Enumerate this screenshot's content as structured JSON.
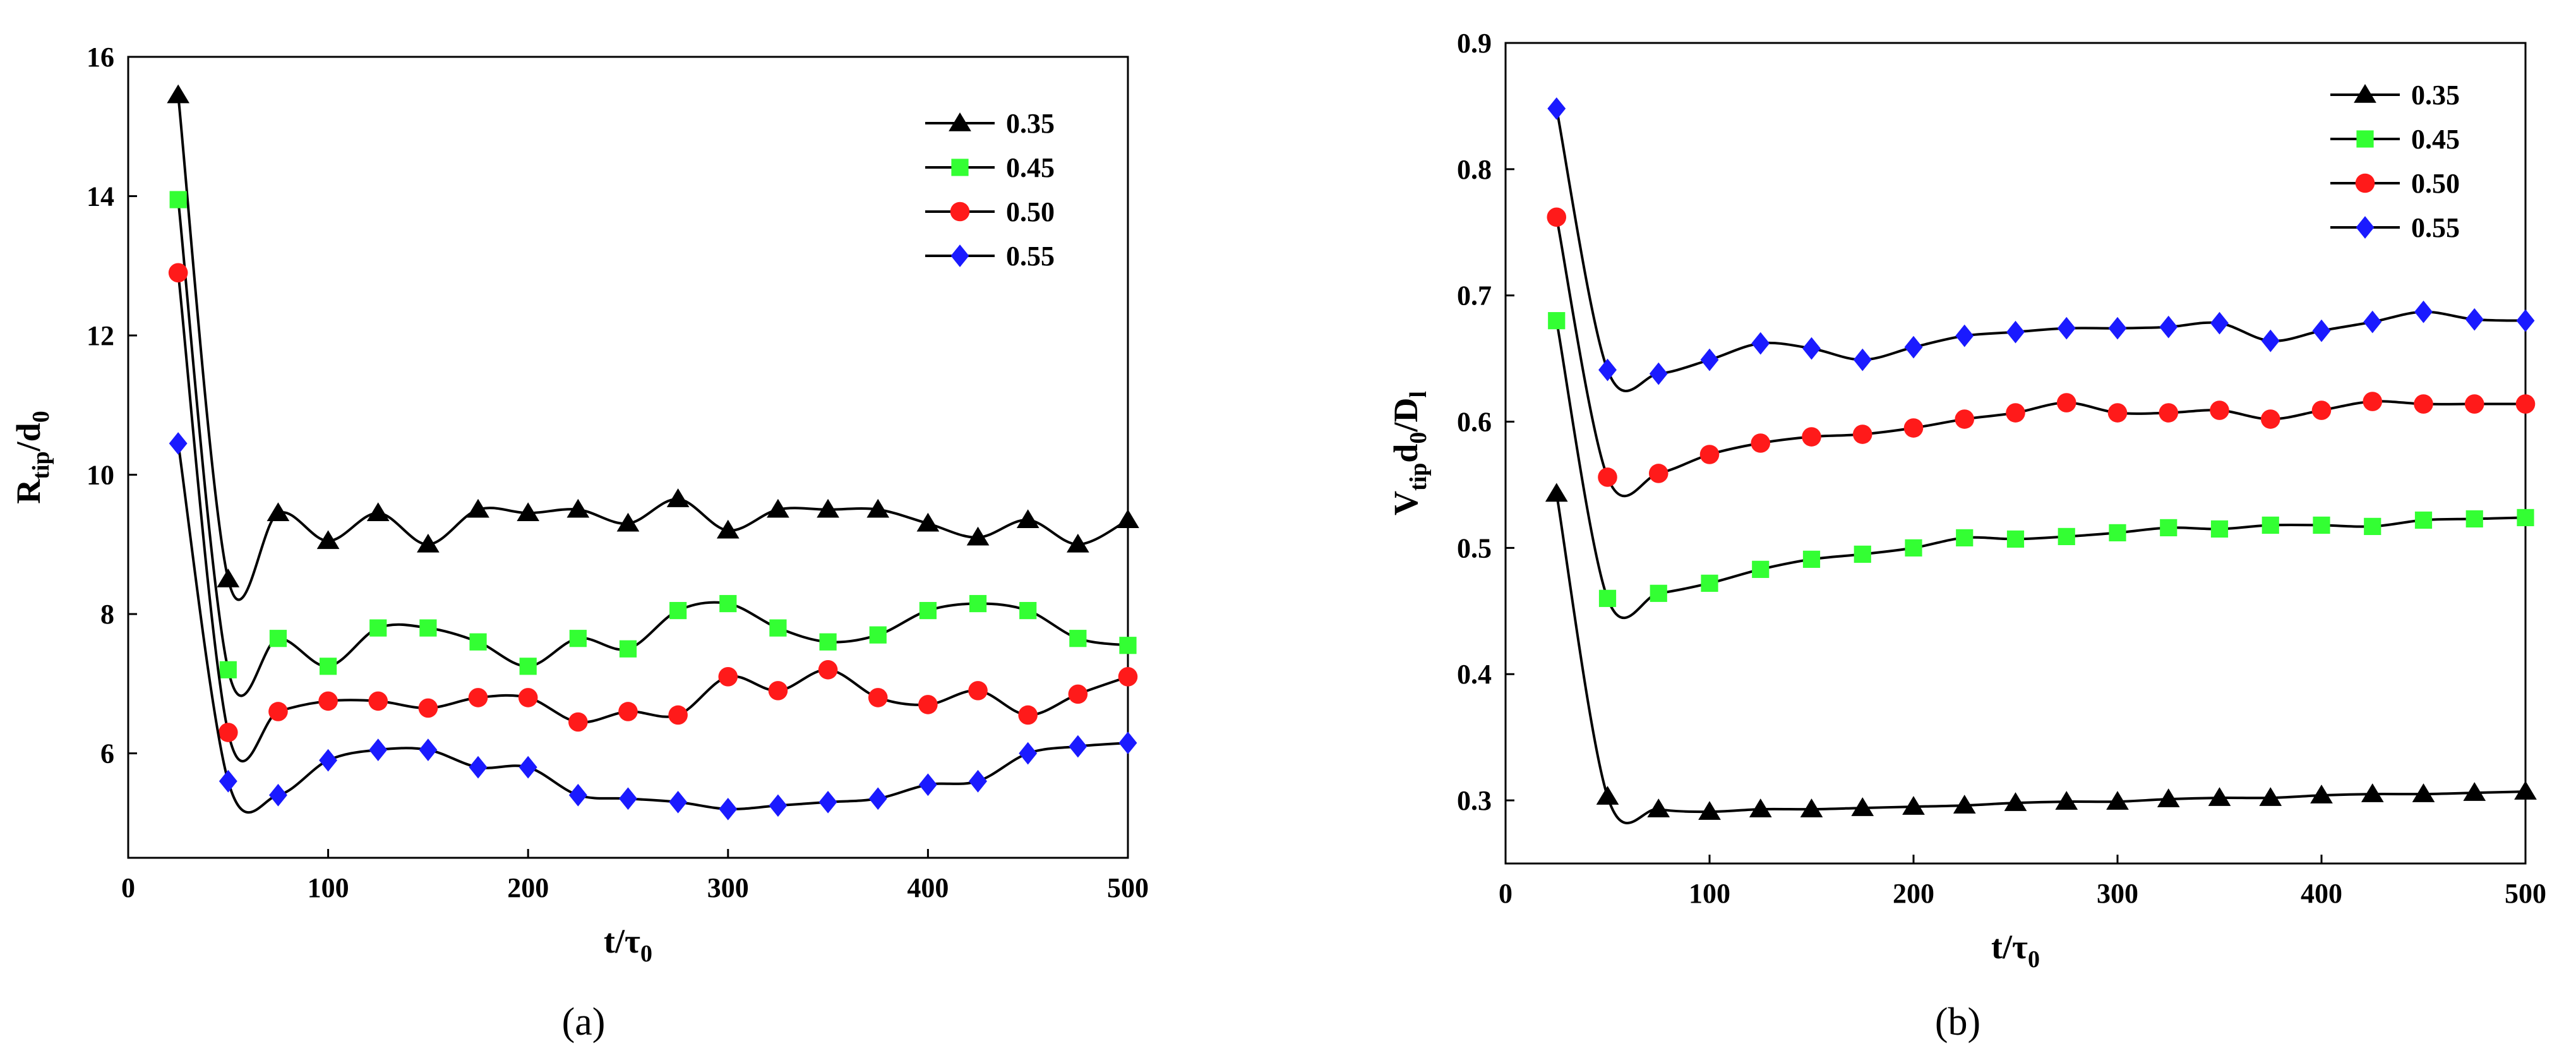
{
  "figure_labels": [
    "(a)",
    "(b)"
  ],
  "legend_markers": {
    "0.35": "triangle",
    "0.45": "square",
    "0.50": "circle",
    "0.55": "diamond"
  },
  "chart_data": [
    {
      "type": "line",
      "panel": "(a)",
      "xlabel": {
        "main": "t/τ",
        "sub": "0"
      },
      "ylabel": {
        "main": "R",
        "sub": "tip",
        "mid": "/d",
        "sub2": "0"
      },
      "xlim": [
        0,
        500
      ],
      "ylim": [
        4.5,
        16
      ],
      "xticks": [
        0,
        100,
        200,
        300,
        400,
        500
      ],
      "yticks": [
        6,
        8,
        10,
        12,
        14,
        16
      ],
      "grid": false,
      "legend_position": "top-right",
      "x": [
        25,
        50,
        75,
        100,
        125,
        150,
        175,
        200,
        225,
        250,
        275,
        300,
        325,
        350,
        375,
        400,
        425,
        450,
        475,
        500
      ],
      "series": [
        {
          "name": "0.35",
          "color": "#000000",
          "marker": "triangle",
          "values": [
            15.45,
            8.5,
            9.45,
            9.05,
            9.45,
            9.0,
            9.5,
            9.45,
            9.5,
            9.3,
            9.65,
            9.2,
            9.5,
            9.5,
            9.5,
            9.3,
            9.1,
            9.35,
            9.0,
            9.35
          ]
        },
        {
          "name": "0.45",
          "color": "#33ff33",
          "marker": "square",
          "values": [
            13.95,
            7.2,
            7.65,
            7.25,
            7.8,
            7.8,
            7.6,
            7.25,
            7.65,
            7.5,
            8.05,
            8.15,
            7.8,
            7.6,
            7.7,
            8.05,
            8.15,
            8.05,
            7.65,
            7.55
          ]
        },
        {
          "name": "0.50",
          "color": "#ff1a1a",
          "marker": "circle",
          "values": [
            12.9,
            6.3,
            6.6,
            6.75,
            6.75,
            6.65,
            6.8,
            6.8,
            6.45,
            6.6,
            6.55,
            7.1,
            6.9,
            7.2,
            6.8,
            6.7,
            6.9,
            6.55,
            6.85,
            7.1
          ]
        },
        {
          "name": "0.55",
          "color": "#1a1aff",
          "marker": "diamond",
          "values": [
            10.45,
            5.6,
            5.4,
            5.9,
            6.05,
            6.05,
            5.8,
            5.8,
            5.4,
            5.35,
            5.3,
            5.2,
            5.25,
            5.3,
            5.35,
            5.55,
            5.6,
            6.0,
            6.1,
            6.15
          ]
        }
      ]
    },
    {
      "type": "line",
      "panel": "(b)",
      "xlabel": {
        "main": "t/τ",
        "sub": "0"
      },
      "ylabel": {
        "main": "V",
        "sub": "tip",
        "mid": "d",
        "sub2": "0",
        "mid2": "/D",
        "sub3": "l"
      },
      "xlim": [
        0,
        500
      ],
      "ylim": [
        0.25,
        0.9
      ],
      "xticks": [
        0,
        100,
        200,
        300,
        400,
        500
      ],
      "yticks": [
        0.3,
        0.4,
        0.5,
        0.6,
        0.7,
        0.8,
        0.9
      ],
      "grid": false,
      "legend_position": "top-right",
      "x": [
        25,
        50,
        75,
        100,
        125,
        150,
        175,
        200,
        225,
        250,
        275,
        300,
        325,
        350,
        375,
        400,
        425,
        450,
        475,
        500
      ],
      "series": [
        {
          "name": "0.35",
          "color": "#000000",
          "marker": "triangle",
          "values": [
            0.543,
            0.303,
            0.293,
            0.291,
            0.293,
            0.293,
            0.294,
            0.295,
            0.296,
            0.298,
            0.299,
            0.299,
            0.301,
            0.302,
            0.302,
            0.304,
            0.305,
            0.305,
            0.306,
            0.307
          ]
        },
        {
          "name": "0.45",
          "color": "#33ff33",
          "marker": "square",
          "values": [
            0.68,
            0.46,
            0.464,
            0.472,
            0.483,
            0.491,
            0.495,
            0.5,
            0.508,
            0.507,
            0.509,
            0.512,
            0.516,
            0.515,
            0.518,
            0.518,
            0.517,
            0.522,
            0.523,
            0.524
          ]
        },
        {
          "name": "0.50",
          "color": "#ff1a1a",
          "marker": "circle",
          "values": [
            0.762,
            0.556,
            0.559,
            0.574,
            0.583,
            0.588,
            0.59,
            0.595,
            0.602,
            0.607,
            0.615,
            0.607,
            0.607,
            0.609,
            0.602,
            0.609,
            0.616,
            0.614,
            0.614,
            0.614
          ]
        },
        {
          "name": "0.55",
          "color": "#1a1aff",
          "marker": "diamond",
          "values": [
            0.848,
            0.641,
            0.638,
            0.649,
            0.662,
            0.658,
            0.649,
            0.659,
            0.668,
            0.671,
            0.674,
            0.674,
            0.675,
            0.678,
            0.664,
            0.672,
            0.679,
            0.687,
            0.681,
            0.68
          ]
        }
      ]
    }
  ]
}
